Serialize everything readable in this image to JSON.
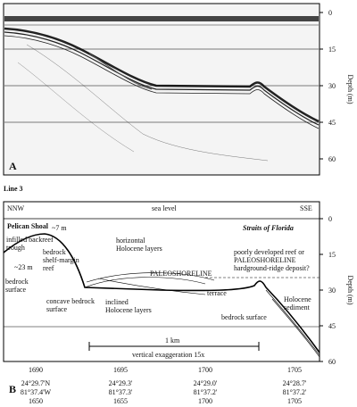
{
  "panel_a": {
    "label": "A",
    "axis_label": "Depth (m)",
    "depth_ticks": [
      0,
      15,
      30,
      45,
      60
    ]
  },
  "panel_b": {
    "line_label": "Line 3",
    "label": "B",
    "axis_label": "Depth (m)",
    "depth_ticks": [
      0,
      15,
      30,
      45,
      60
    ],
    "labels": {
      "nnw": "NNW",
      "sea_level": "sea level",
      "sse": "SSE",
      "pelican_shoal": "Pelican Shoal",
      "straits": "Straits of Florida",
      "seven_m": "~7 m",
      "backreef": [
        "infilled backreef",
        "trough"
      ],
      "twentythree_m": "~23 m",
      "bedrock_surface_left": [
        "bedrock",
        "surface"
      ],
      "shelf_margin_reef": [
        "bedrock",
        "shelf-margin",
        "reef"
      ],
      "horizontal_layers": [
        "horizontal",
        "Holocene layers"
      ],
      "poorly_developed": [
        "poorly developed reef or",
        "PALEOSHORELINE",
        "hardground-ridge deposit?"
      ],
      "paleoshoreline": "PALEOSHORELINE",
      "concave": [
        "concave bedrock",
        "surface"
      ],
      "inclined": [
        "inclined",
        "Holocene layers"
      ],
      "terrace": "terrace",
      "bedrock_surface_right": "bedrock surface",
      "holocene_sediment": [
        "Holocene",
        "sediment"
      ],
      "scale": "1 km",
      "exaggeration": "vertical exaggeration 15x"
    },
    "positions": [
      [
        "1690",
        "24°29.7'N",
        "81°37.4'W",
        "1650"
      ],
      [
        "1695",
        "24°29.3'",
        "81°37.3'",
        "1655"
      ],
      [
        "1700",
        "24°29.0'",
        "81°37.2'",
        "1700"
      ],
      [
        "1705",
        "24°28.7'",
        "81°37.2'",
        "1705"
      ]
    ]
  }
}
